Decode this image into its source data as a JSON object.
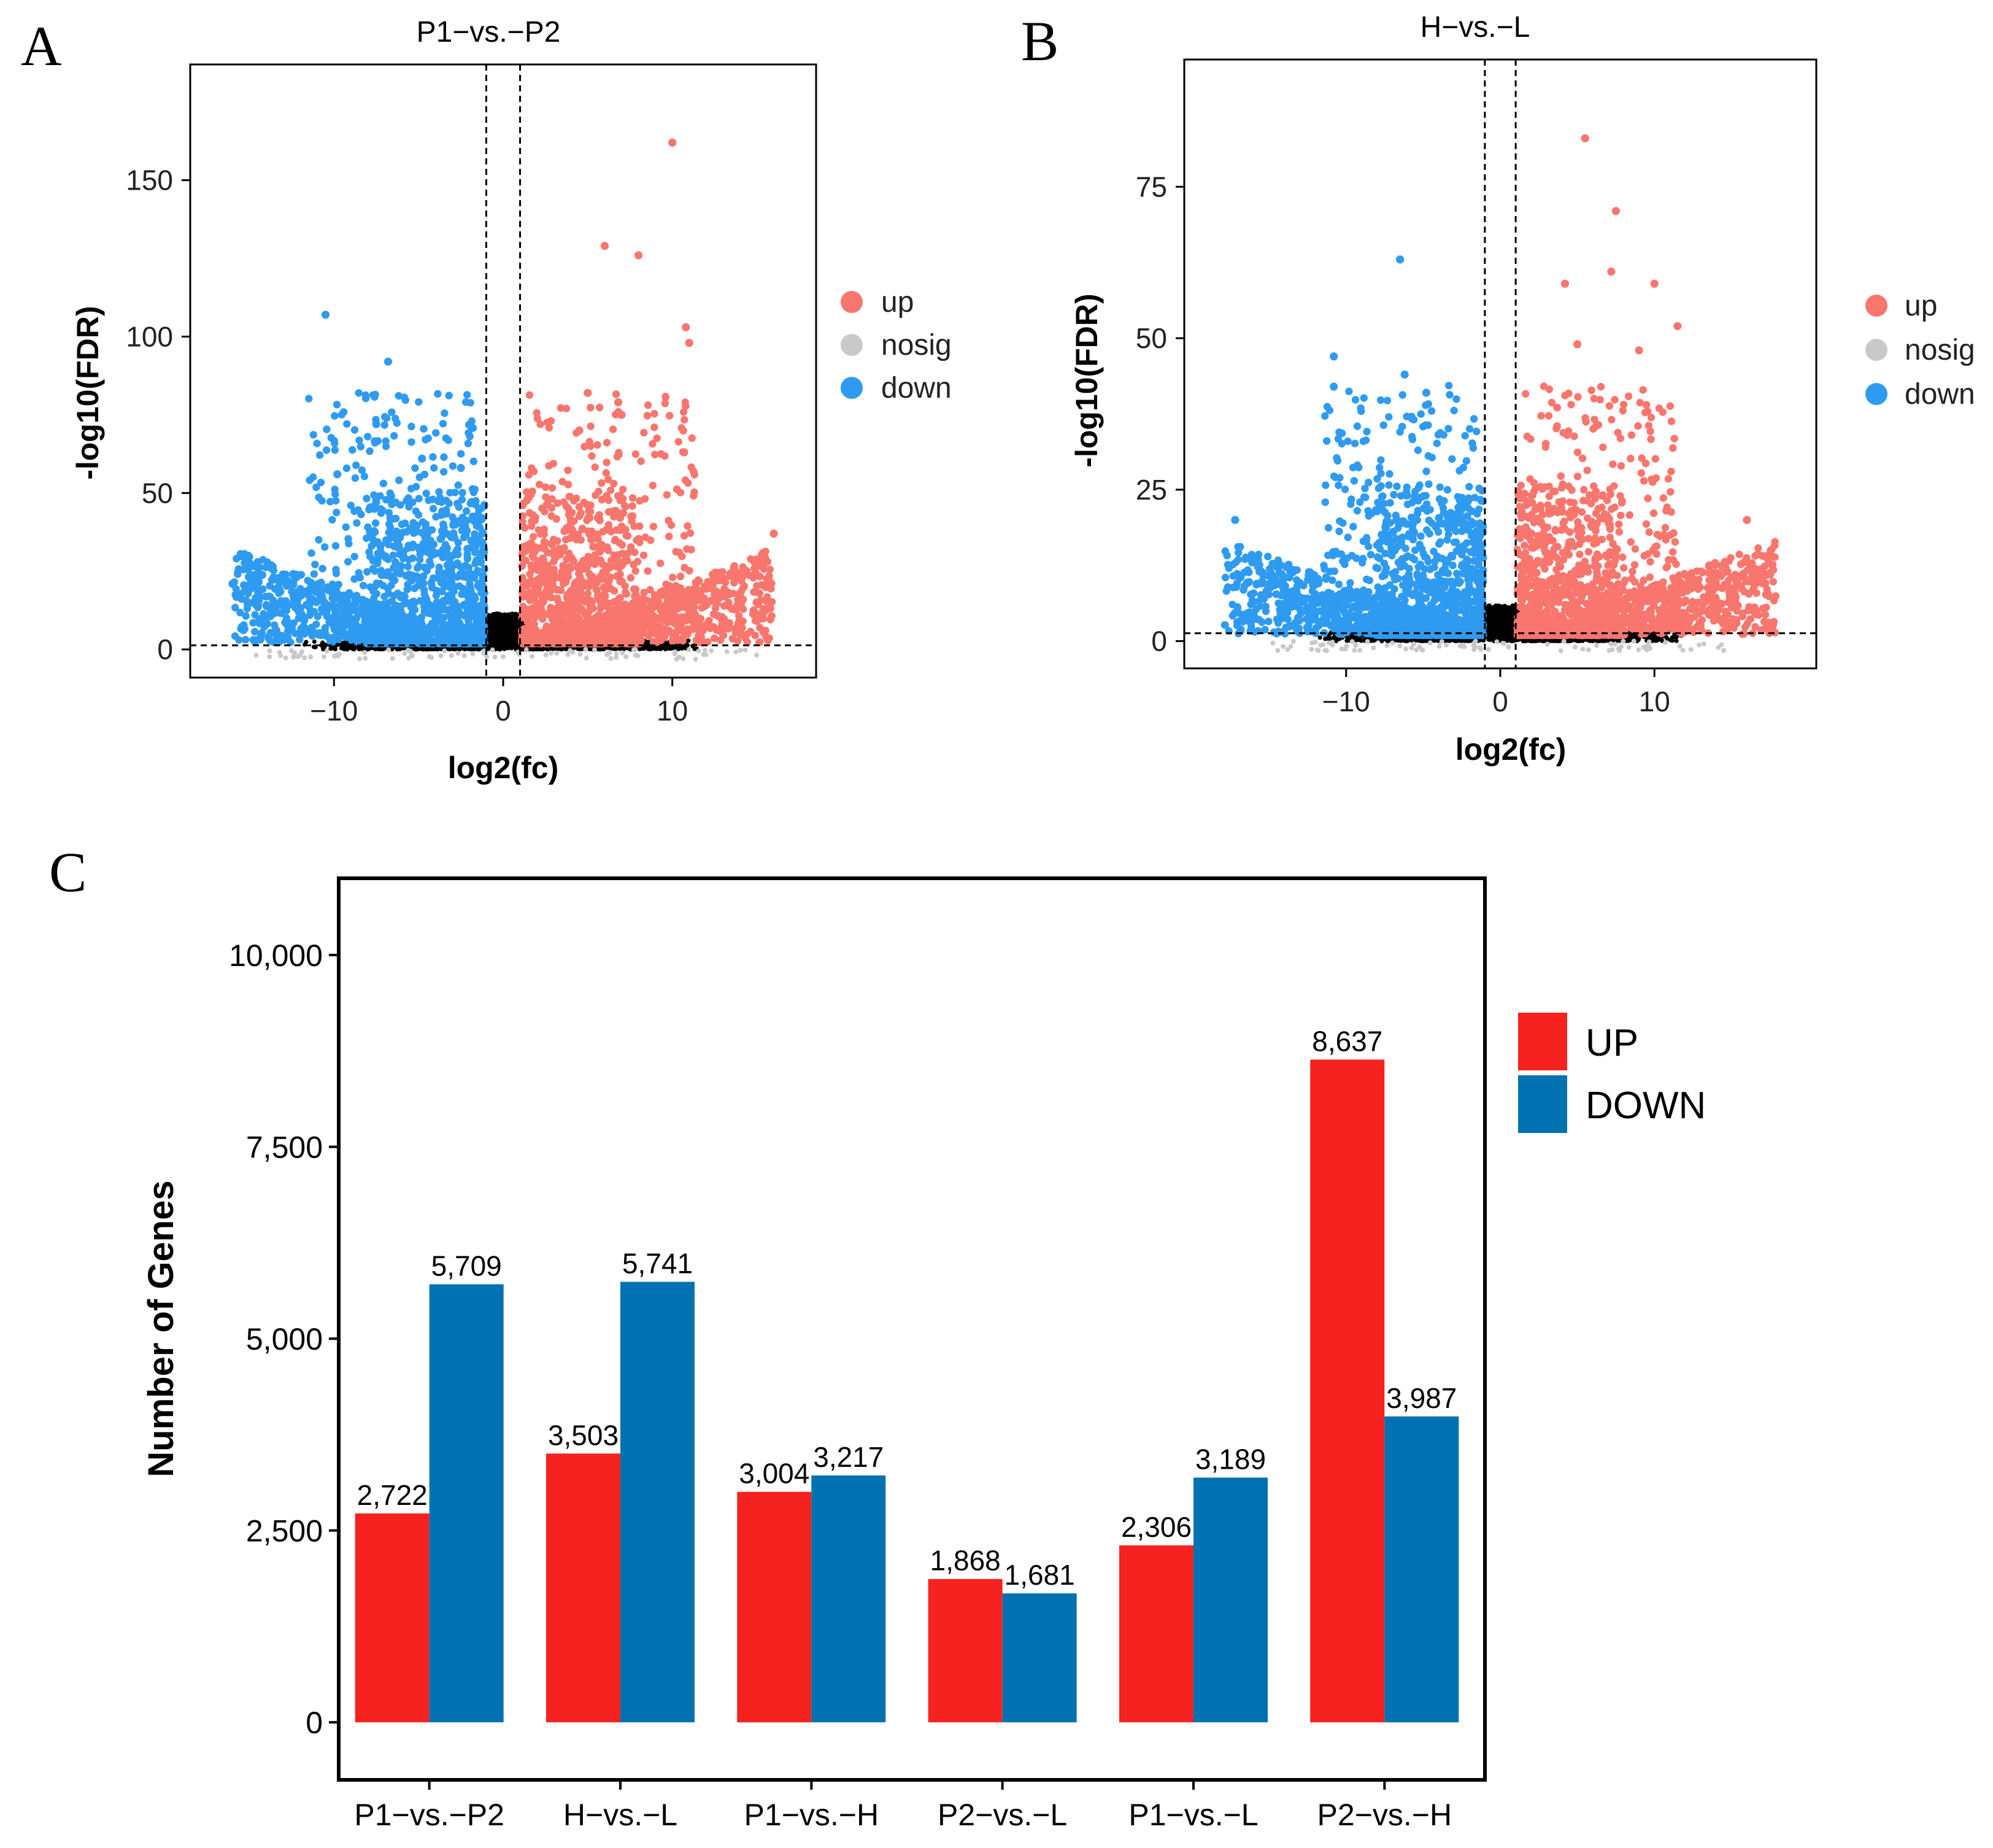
{
  "colors": {
    "up": "#f8766d",
    "nosig": "#c9c9c9",
    "down": "#2f9bf0",
    "nosig_dots": "#000000",
    "bar_up": "#f5221f",
    "bar_down": "#0072b2"
  },
  "panels": {
    "a": {
      "letter": "A"
    },
    "b": {
      "letter": "B"
    },
    "c": {
      "letter": "C"
    }
  },
  "chart_data": [
    {
      "panel": "A",
      "type": "scatter",
      "title": "P1−vs.−P2",
      "xlabel": "log2(fc)",
      "ylabel": "-log10(FDR)",
      "xlim": [
        -18.5,
        18.5
      ],
      "ylim": [
        -9,
        187
      ],
      "xticks": [
        -10,
        0,
        10
      ],
      "xtick_labels": [
        "−10",
        "0",
        "10"
      ],
      "yticks": [
        0,
        50,
        100,
        150
      ],
      "ytick_labels": [
        "0",
        "50",
        "100",
        "150"
      ],
      "thresholds": {
        "x": [
          -1,
          1
        ],
        "y": 1.3
      },
      "legend": [
        {
          "key": "up",
          "label": "up"
        },
        {
          "key": "nosig",
          "label": "nosig"
        },
        {
          "key": "down",
          "label": "down"
        }
      ],
      "highlight_points": [
        {
          "x": 10.0,
          "y": 162,
          "group": "up"
        },
        {
          "x": 6.0,
          "y": 129,
          "group": "up"
        },
        {
          "x": 8.0,
          "y": 126,
          "group": "up"
        },
        {
          "x": 10.8,
          "y": 103,
          "group": "up"
        },
        {
          "x": 11.0,
          "y": 98,
          "group": "up"
        },
        {
          "x": 5.0,
          "y": 82,
          "group": "up"
        },
        {
          "x": 6.8,
          "y": 79,
          "group": "up"
        },
        {
          "x": 7.0,
          "y": 75,
          "group": "up"
        },
        {
          "x": 4.5,
          "y": 70,
          "group": "up"
        },
        {
          "x": 10.7,
          "y": 63,
          "group": "up"
        },
        {
          "x": 16.0,
          "y": 37,
          "group": "up"
        },
        {
          "x": -10.5,
          "y": 107,
          "group": "down"
        },
        {
          "x": -6.8,
          "y": 92,
          "group": "down"
        },
        {
          "x": -7.5,
          "y": 72,
          "group": "down"
        },
        {
          "x": -4.8,
          "y": 61,
          "group": "down"
        },
        {
          "x": -2.5,
          "y": 58,
          "group": "down"
        },
        {
          "x": -9.8,
          "y": 56,
          "group": "down"
        },
        {
          "x": -16.0,
          "y": 21,
          "group": "down"
        }
      ],
      "seed": 11
    },
    {
      "panel": "B",
      "type": "scatter",
      "title": "H−vs.−L",
      "xlabel": "log2(fc)",
      "ylabel": "-log10(FDR)",
      "xlim": [
        -20.5,
        20.5
      ],
      "ylim": [
        -4.5,
        96
      ],
      "xticks": [
        -10,
        0,
        10
      ],
      "xtick_labels": [
        "−10",
        "0",
        "10"
      ],
      "yticks": [
        0,
        25,
        50,
        75
      ],
      "ytick_labels": [
        "0",
        "25",
        "50",
        "75"
      ],
      "thresholds": {
        "x": [
          -1,
          1
        ],
        "y": 1.3
      },
      "legend": [
        {
          "key": "up",
          "label": "up"
        },
        {
          "key": "nosig",
          "label": "nosig"
        },
        {
          "key": "down",
          "label": "down"
        }
      ],
      "highlight_points": [
        {
          "x": 5.5,
          "y": 83,
          "group": "up"
        },
        {
          "x": 7.5,
          "y": 71,
          "group": "up"
        },
        {
          "x": 7.2,
          "y": 61,
          "group": "up"
        },
        {
          "x": 10.0,
          "y": 59,
          "group": "up"
        },
        {
          "x": 4.2,
          "y": 59,
          "group": "up"
        },
        {
          "x": 11.5,
          "y": 52,
          "group": "up"
        },
        {
          "x": 5.0,
          "y": 49,
          "group": "up"
        },
        {
          "x": 9.0,
          "y": 48,
          "group": "up"
        },
        {
          "x": 16.0,
          "y": 20,
          "group": "up"
        },
        {
          "x": -6.5,
          "y": 63,
          "group": "down"
        },
        {
          "x": -10.8,
          "y": 47,
          "group": "down"
        },
        {
          "x": -10.8,
          "y": 42,
          "group": "down"
        },
        {
          "x": -6.2,
          "y": 44,
          "group": "down"
        },
        {
          "x": -4.8,
          "y": 41,
          "group": "down"
        },
        {
          "x": -17.2,
          "y": 20,
          "group": "down"
        }
      ],
      "seed": 29
    },
    {
      "panel": "C",
      "type": "bar",
      "ylabel": "Number of Genes",
      "categories": [
        "P1−vs.−P2",
        "H−vs.−L",
        "P1−vs.−H",
        "P2−vs.−L",
        "P1−vs.−L",
        "P2−vs.−H"
      ],
      "series": [
        {
          "name": "UP",
          "key": "bar_up",
          "values": [
            2722,
            3503,
            3004,
            1868,
            2306,
            8637
          ],
          "labels": [
            "2,722",
            "3,503",
            "3,004",
            "1,868",
            "2,306",
            "8,637"
          ]
        },
        {
          "name": "DOWN",
          "key": "bar_down",
          "values": [
            5709,
            5741,
            3217,
            1681,
            3189,
            3987
          ],
          "labels": [
            "5,709",
            "5,741",
            "3,217",
            "1,681",
            "3,189",
            "3,987"
          ]
        }
      ],
      "ylim": [
        -750,
        11000
      ],
      "yticks": [
        0,
        2500,
        5000,
        7500,
        10000
      ],
      "ytick_labels": [
        "0",
        "2,500",
        "5,000",
        "7,500",
        "10,000"
      ],
      "legend": [
        "UP",
        "DOWN"
      ]
    }
  ]
}
